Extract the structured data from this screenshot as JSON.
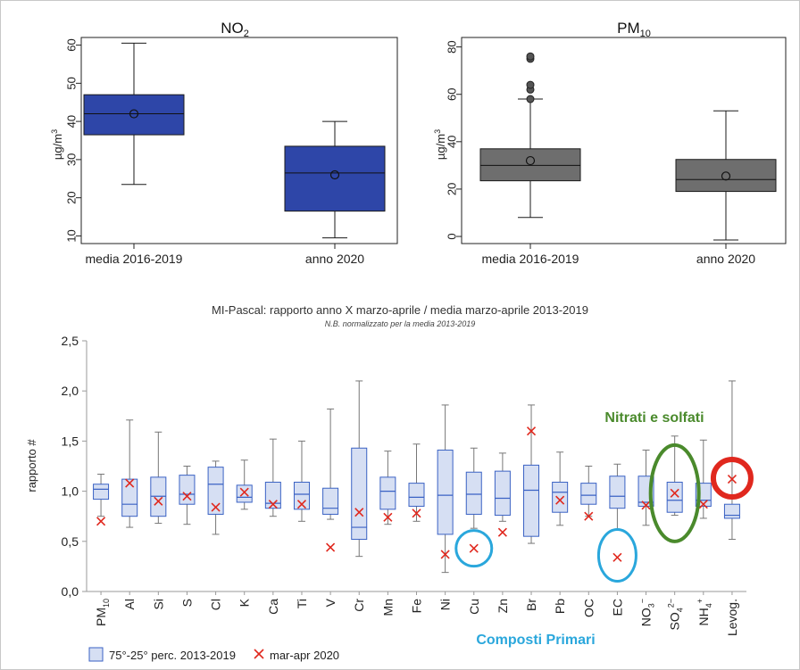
{
  "chart_data": [
    {
      "type": "box",
      "title": "NO",
      "title_sub": "2",
      "ylabel": "µg/m",
      "ylabel_sup": "3",
      "yticks": [
        10,
        20,
        30,
        40,
        50,
        60
      ],
      "ylim": [
        8,
        62
      ],
      "categories": [
        "media 2016-2019",
        "anno 2020"
      ],
      "boxes": [
        {
          "whisker_low": 23.5,
          "q1": 36.5,
          "median": 42,
          "q3": 47,
          "whisker_high": 60.5,
          "mean": 42,
          "outliers": []
        },
        {
          "whisker_low": 9.5,
          "q1": 16.5,
          "median": 26.5,
          "q3": 33.5,
          "whisker_high": 40,
          "mean": 26,
          "outliers": []
        }
      ],
      "colors": {
        "fill": "#2e46a8",
        "stroke": "#1a1a1a"
      }
    },
    {
      "type": "box",
      "title": "PM",
      "title_sub": "10",
      "ylabel": "µg/m",
      "ylabel_sup": "3",
      "yticks": [
        0,
        20,
        40,
        60,
        80
      ],
      "ylim": [
        -3,
        84
      ],
      "categories": [
        "media 2016-2019",
        "anno 2020"
      ],
      "boxes": [
        {
          "whisker_low": 8,
          "q1": 23.5,
          "median": 30,
          "q3": 37,
          "whisker_high": 58,
          "mean": 32,
          "outliers": [
            58,
            62,
            64,
            75,
            76
          ]
        },
        {
          "whisker_low": -1.5,
          "q1": 19,
          "median": 24,
          "q3": 32.5,
          "whisker_high": 53,
          "mean": 25.5,
          "outliers": []
        }
      ],
      "colors": {
        "fill": "#6e6e6e",
        "stroke": "#1a1a1a"
      }
    },
    {
      "type": "box",
      "title": "MI-Pascal: rapporto anno X marzo-aprile / media marzo-aprile 2013-2019",
      "subtitle": "N.B. normalizzato per la media 2013-2019",
      "ylabel": "rapporto #",
      "yticks": [
        "0,0",
        "0,5",
        "1,0",
        "1,5",
        "2,0",
        "2,5"
      ],
      "ylim": [
        0,
        2.5
      ],
      "categories": [
        {
          "main": "PM",
          "sub": "10",
          "sup": ""
        },
        {
          "main": "Al",
          "sub": "",
          "sup": ""
        },
        {
          "main": "Si",
          "sub": "",
          "sup": ""
        },
        {
          "main": "S",
          "sub": "",
          "sup": ""
        },
        {
          "main": "Cl",
          "sub": "",
          "sup": ""
        },
        {
          "main": "K",
          "sub": "",
          "sup": ""
        },
        {
          "main": "Ca",
          "sub": "",
          "sup": ""
        },
        {
          "main": "Ti",
          "sub": "",
          "sup": ""
        },
        {
          "main": "V",
          "sub": "",
          "sup": ""
        },
        {
          "main": "Cr",
          "sub": "",
          "sup": ""
        },
        {
          "main": "Mn",
          "sub": "",
          "sup": ""
        },
        {
          "main": "Fe",
          "sub": "",
          "sup": ""
        },
        {
          "main": "Ni",
          "sub": "",
          "sup": ""
        },
        {
          "main": "Cu",
          "sub": "",
          "sup": ""
        },
        {
          "main": "Zn",
          "sub": "",
          "sup": ""
        },
        {
          "main": "Br",
          "sub": "",
          "sup": ""
        },
        {
          "main": "Pb",
          "sub": "",
          "sup": ""
        },
        {
          "main": "OC",
          "sub": "",
          "sup": ""
        },
        {
          "main": "EC",
          "sub": "",
          "sup": ""
        },
        {
          "main": "NO",
          "sub": "3",
          "sup": "−"
        },
        {
          "main": "SO",
          "sub": "4",
          "sup": "2−"
        },
        {
          "main": "NH",
          "sub": "4",
          "sup": "+"
        },
        {
          "main": "Levog.",
          "sub": "",
          "sup": ""
        }
      ],
      "boxes": [
        {
          "whisker_low": 0.75,
          "q1": 0.92,
          "median": 1.02,
          "q3": 1.07,
          "whisker_high": 1.17
        },
        {
          "whisker_low": 0.64,
          "q1": 0.75,
          "median": 0.87,
          "q3": 1.12,
          "whisker_high": 1.71
        },
        {
          "whisker_low": 0.68,
          "q1": 0.75,
          "median": 0.95,
          "q3": 1.14,
          "whisker_high": 1.59
        },
        {
          "whisker_low": 0.67,
          "q1": 0.87,
          "median": 0.97,
          "q3": 1.16,
          "whisker_high": 1.25
        },
        {
          "whisker_low": 0.57,
          "q1": 0.77,
          "median": 1.07,
          "q3": 1.24,
          "whisker_high": 1.3
        },
        {
          "whisker_low": 0.82,
          "q1": 0.89,
          "median": 0.94,
          "q3": 1.06,
          "whisker_high": 1.31
        },
        {
          "whisker_low": 0.75,
          "q1": 0.83,
          "median": 0.88,
          "q3": 1.09,
          "whisker_high": 1.52
        },
        {
          "whisker_low": 0.7,
          "q1": 0.82,
          "median": 0.97,
          "q3": 1.09,
          "whisker_high": 1.5
        },
        {
          "whisker_low": 0.72,
          "q1": 0.77,
          "median": 0.83,
          "q3": 1.03,
          "whisker_high": 1.82
        },
        {
          "whisker_low": 0.35,
          "q1": 0.52,
          "median": 0.64,
          "q3": 1.43,
          "whisker_high": 2.1
        },
        {
          "whisker_low": 0.67,
          "q1": 0.82,
          "median": 1.0,
          "q3": 1.14,
          "whisker_high": 1.4
        },
        {
          "whisker_low": 0.7,
          "q1": 0.85,
          "median": 0.94,
          "q3": 1.08,
          "whisker_high": 1.47
        },
        {
          "whisker_low": 0.19,
          "q1": 0.57,
          "median": 0.96,
          "q3": 1.41,
          "whisker_high": 1.86
        },
        {
          "whisker_low": 0.63,
          "q1": 0.77,
          "median": 0.97,
          "q3": 1.19,
          "whisker_high": 1.43
        },
        {
          "whisker_low": 0.7,
          "q1": 0.76,
          "median": 0.93,
          "q3": 1.2,
          "whisker_high": 1.38
        },
        {
          "whisker_low": 0.48,
          "q1": 0.55,
          "median": 1.01,
          "q3": 1.26,
          "whisker_high": 1.86
        },
        {
          "whisker_low": 0.66,
          "q1": 0.79,
          "median": 0.99,
          "q3": 1.09,
          "whisker_high": 1.39
        },
        {
          "whisker_low": 0.75,
          "q1": 0.87,
          "median": 0.96,
          "q3": 1.08,
          "whisker_high": 1.25
        },
        {
          "whisker_low": 0.62,
          "q1": 0.83,
          "median": 0.95,
          "q3": 1.15,
          "whisker_high": 1.27
        },
        {
          "whisker_low": 0.66,
          "q1": 0.85,
          "median": 0.89,
          "q3": 1.15,
          "whisker_high": 1.41
        },
        {
          "whisker_low": 0.76,
          "q1": 0.79,
          "median": 0.91,
          "q3": 1.09,
          "whisker_high": 1.55
        },
        {
          "whisker_low": 0.73,
          "q1": 0.85,
          "median": 0.91,
          "q3": 1.08,
          "whisker_high": 1.51
        },
        {
          "whisker_low": 0.52,
          "q1": 0.73,
          "median": 0.76,
          "q3": 0.87,
          "whisker_high": 2.1
        }
      ],
      "marker_values": [
        0.7,
        1.08,
        0.9,
        0.95,
        0.84,
        0.99,
        0.87,
        0.87,
        0.44,
        0.79,
        0.74,
        0.78,
        0.37,
        0.43,
        0.59,
        1.6,
        0.91,
        0.75,
        0.34,
        0.86,
        0.98,
        0.87,
        1.12
      ],
      "annotations": [
        {
          "text": "Nitrati e solfati",
          "color": "#4a8a2c"
        },
        {
          "text": "Composti Primari",
          "color": "#2aa7dc"
        }
      ],
      "highlight_circles": [
        {
          "category_index": 13,
          "color": "#2aa7dc"
        },
        {
          "category_index": 18,
          "color": "#2aa7dc"
        },
        {
          "category_index": 20,
          "color": "#4a8a2c"
        },
        {
          "category_index": 22,
          "color": "#e0281e"
        }
      ],
      "legend": {
        "position": "bottom-left",
        "box_label": "75°-25° perc. 2013-2019",
        "marker_label": "mar-apr 2020"
      },
      "colors": {
        "box_fill": "#d6dff3",
        "box_stroke": "#3a62c4",
        "whisker": "#777777",
        "marker": "#e0281e"
      }
    }
  ]
}
